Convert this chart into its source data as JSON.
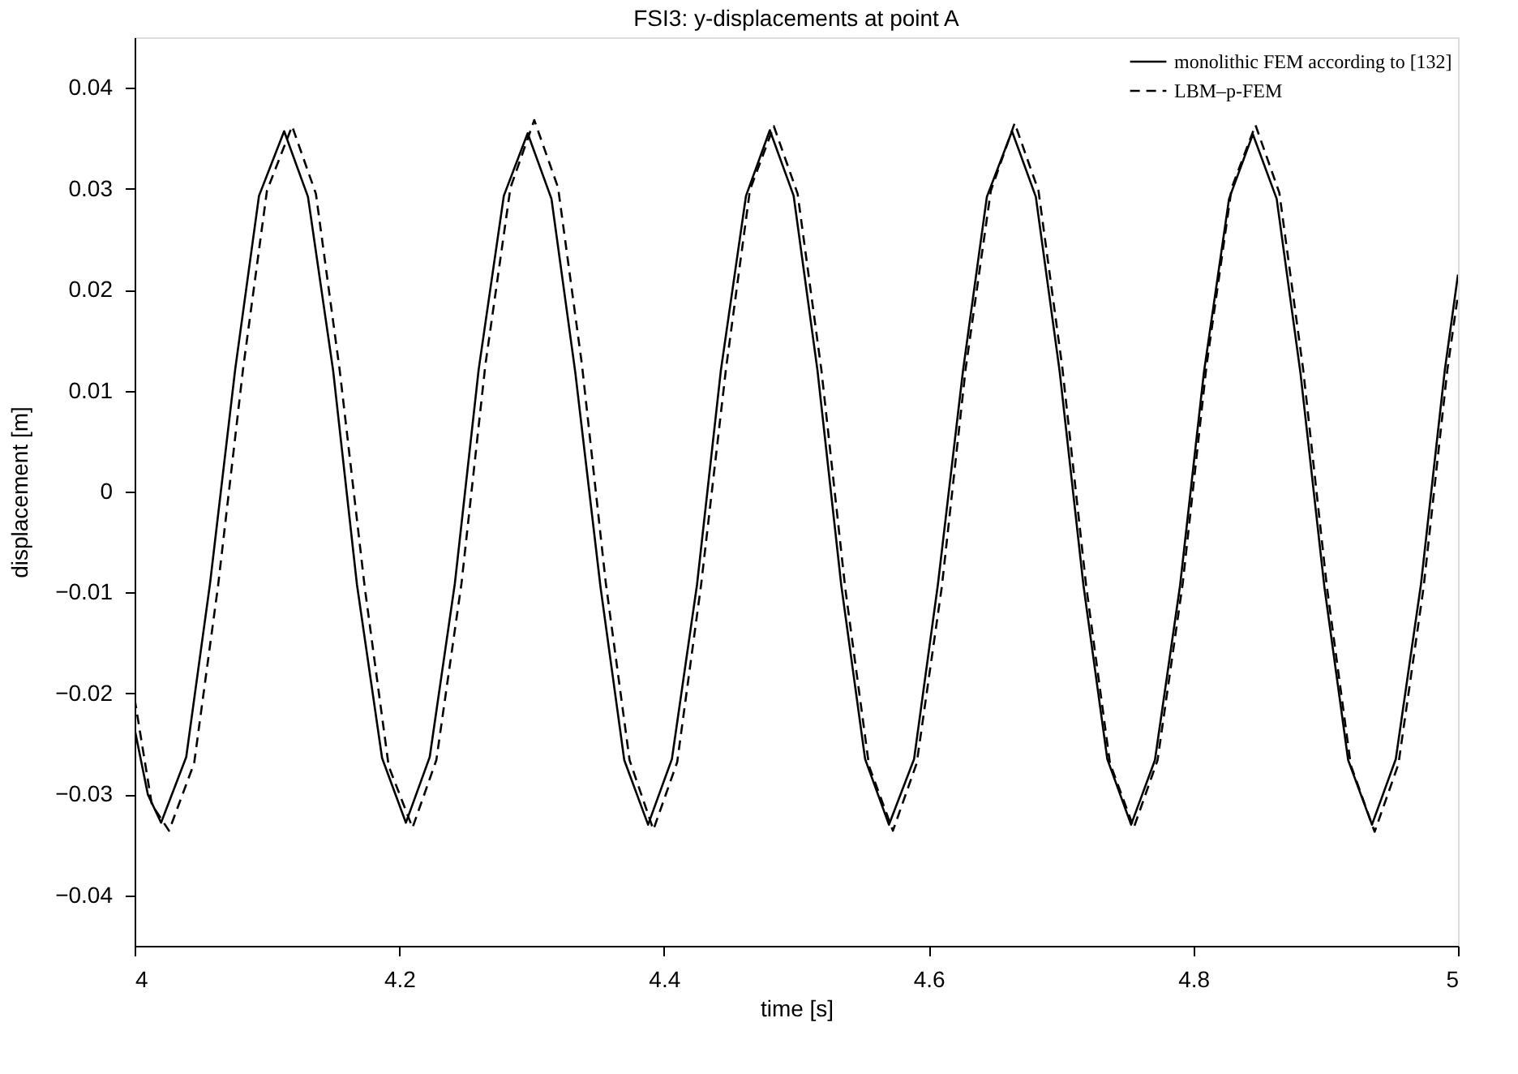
{
  "chart_data": {
    "type": "line",
    "title": "FSI3: y-displacements at point A",
    "xlabel": "time [s]",
    "ylabel": "displacement [m]",
    "xlim": [
      4,
      5
    ],
    "xticks": [
      4,
      4.2,
      4.4,
      4.6,
      4.8,
      5
    ],
    "ylim": [
      -0.045,
      0.045
    ],
    "yticks": [
      -0.04,
      -0.03,
      -0.02,
      -0.01,
      0,
      0.01,
      0.02,
      0.03,
      0.04
    ],
    "grid": false,
    "legend": "top right",
    "marker": "none",
    "series": [
      {
        "name": "monolithic FEM according to [132]",
        "color": "#000000",
        "line_style": "solid",
        "x": [
          4.0,
          4.01,
          4.02,
          4.039,
          4.057,
          4.076,
          4.094,
          4.113,
          4.131,
          4.15,
          4.168,
          4.187,
          4.205,
          4.223,
          4.242,
          4.26,
          4.279,
          4.297,
          4.315,
          4.333,
          4.352,
          4.37,
          4.388,
          4.406,
          4.425,
          4.443,
          4.462,
          4.48,
          4.498,
          4.516,
          4.534,
          4.552,
          4.57,
          4.589,
          4.607,
          4.626,
          4.644,
          4.663,
          4.681,
          4.699,
          4.717,
          4.735,
          4.753,
          4.771,
          4.79,
          4.808,
          4.827,
          4.845,
          4.863,
          4.881,
          4.899,
          4.917,
          4.935,
          4.953,
          4.972,
          4.99,
          5.0
        ],
        "values": [
          -0.0235,
          -0.03,
          -0.0328,
          -0.0263,
          -0.0091,
          0.0121,
          0.0293,
          0.0357,
          0.0292,
          0.012,
          -0.0092,
          -0.0264,
          -0.0328,
          -0.0263,
          -0.0091,
          0.0121,
          0.0293,
          0.0355,
          0.029,
          0.0118,
          -0.0094,
          -0.0266,
          -0.033,
          -0.0265,
          -0.0092,
          0.012,
          0.0293,
          0.0358,
          0.0293,
          0.012,
          -0.0093,
          -0.0265,
          -0.033,
          -0.0265,
          -0.0092,
          0.012,
          0.0292,
          0.0357,
          0.0292,
          0.0119,
          -0.0093,
          -0.0265,
          -0.033,
          -0.0266,
          -0.0093,
          0.0118,
          0.029,
          0.0354,
          0.029,
          0.0117,
          -0.0094,
          -0.0266,
          -0.033,
          -0.0265,
          -0.0092,
          0.012,
          0.0215
        ]
      },
      {
        "name": "LBM–p-FEM",
        "color": "#000000",
        "line_style": "dashed",
        "x": [
          4.0,
          4.013,
          4.026,
          4.045,
          4.063,
          4.082,
          4.1,
          4.119,
          4.137,
          4.155,
          4.174,
          4.192,
          4.21,
          4.228,
          4.247,
          4.265,
          4.284,
          4.302,
          4.32,
          4.338,
          4.356,
          4.374,
          4.392,
          4.41,
          4.428,
          4.447,
          4.465,
          4.483,
          4.501,
          4.519,
          4.537,
          4.555,
          4.573,
          4.591,
          4.61,
          4.628,
          4.647,
          4.665,
          4.683,
          4.701,
          4.719,
          4.737,
          4.755,
          4.773,
          4.792,
          4.81,
          4.829,
          4.847,
          4.865,
          4.883,
          4.901,
          4.919,
          4.937,
          4.955,
          4.974,
          4.992,
          5.0
        ],
        "values": [
          -0.0205,
          -0.031,
          -0.0336,
          -0.0269,
          -0.0094,
          0.0122,
          0.0298,
          0.0362,
          0.0295,
          0.012,
          -0.0096,
          -0.0272,
          -0.0333,
          -0.0266,
          -0.0091,
          0.0125,
          0.0301,
          0.0368,
          0.0301,
          0.0126,
          -0.009,
          -0.0266,
          -0.0335,
          -0.0268,
          -0.0093,
          0.0123,
          0.0299,
          0.0362,
          0.0295,
          0.012,
          -0.0096,
          -0.0272,
          -0.0336,
          -0.0269,
          -0.0094,
          0.0122,
          0.0298,
          0.0365,
          0.0298,
          0.0123,
          -0.0093,
          -0.0269,
          -0.0333,
          -0.0266,
          -0.0091,
          0.0125,
          0.0301,
          0.0363,
          0.0296,
          0.0121,
          -0.0095,
          -0.0271,
          -0.0337,
          -0.027,
          -0.0095,
          0.0121,
          0.0195
        ]
      }
    ]
  }
}
